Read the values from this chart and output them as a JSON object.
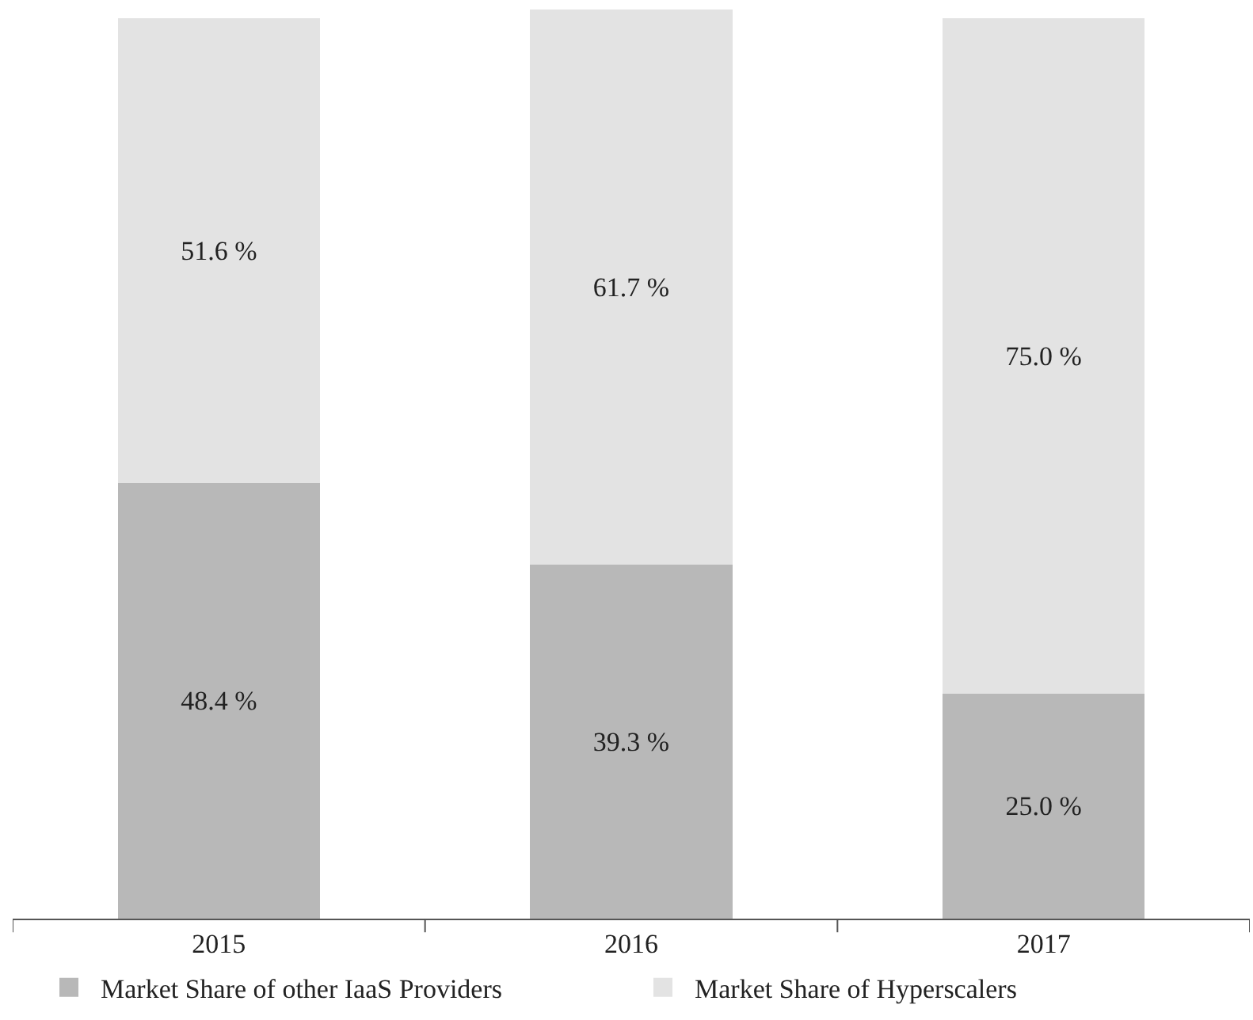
{
  "chart_data": {
    "type": "bar",
    "stacked": true,
    "categories": [
      "2015",
      "2016",
      "2017"
    ],
    "series": [
      {
        "name": "Market Share of other IaaS Providers",
        "color": "#b8b8b8",
        "values": [
          48.4,
          39.3,
          25.0
        ],
        "value_labels": [
          "48.4 %",
          "39.3 %",
          "25.0 %"
        ]
      },
      {
        "name": "Market Share of Hyperscalers",
        "color": "#e3e3e3",
        "values": [
          51.6,
          61.7,
          75.0
        ],
        "value_labels": [
          "51.6 %",
          "61.7 %",
          "75.0 %"
        ]
      }
    ],
    "legend": "bottom",
    "tick_labels": "x"
  }
}
